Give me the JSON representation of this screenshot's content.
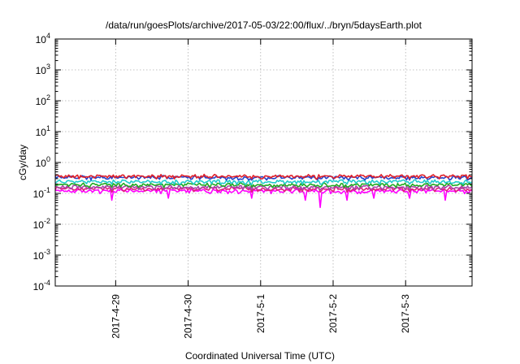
{
  "chart_data": {
    "type": "line",
    "title": "/data/run/goesPlots/archive/2017-05-03/22:00/flux/../bryn/5daysEarth.plot",
    "xlabel": "Coordinated Universal Time (UTC)",
    "ylabel": "cGy/day",
    "yscale": "log",
    "ylim": [
      0.0001,
      10000
    ],
    "xlim": [
      "2017-04-28 04:00",
      "2017-05-03 22:00"
    ],
    "grid": true,
    "y_ticks": [
      {
        "base": "10",
        "exp": "-4"
      },
      {
        "base": "10",
        "exp": "-3"
      },
      {
        "base": "10",
        "exp": "-2"
      },
      {
        "base": "10",
        "exp": "-1"
      },
      {
        "base": "10",
        "exp": "0"
      },
      {
        "base": "10",
        "exp": "1"
      },
      {
        "base": "10",
        "exp": "2"
      },
      {
        "base": "10",
        "exp": "3"
      },
      {
        "base": "10",
        "exp": "4"
      }
    ],
    "x_ticks": [
      "2017-4-29",
      "2017-4-30",
      "2017-5-1",
      "2017-5-2",
      "2017-5-3"
    ],
    "x_tick_times": [
      "2017-04-29 00:00",
      "2017-04-30 00:00",
      "2017-05-01 00:00",
      "2017-05-02 00:00",
      "2017-05-03 00:00"
    ],
    "series": [
      {
        "color": "#e0202a",
        "level": 0.36,
        "dips": [
          0.34,
          0.36,
          0.3,
          0.36,
          0.33
        ]
      },
      {
        "color": "#2244cc",
        "level": 0.33,
        "dips": [
          0.3,
          0.33,
          0.27,
          0.33,
          0.3
        ]
      },
      {
        "color": "#22cccc",
        "level": 0.24,
        "dips": [
          0.2,
          0.23,
          0.2,
          0.22,
          0.2
        ]
      },
      {
        "color": "#22aa22",
        "level": 0.19,
        "dips": [
          0.16,
          0.19,
          0.16,
          0.18,
          0.16
        ]
      },
      {
        "color": "#aa44aa",
        "level": 0.16,
        "dips": [
          0.13,
          0.16,
          0.13,
          0.15,
          0.13
        ]
      },
      {
        "color": "#e0207a",
        "level": 0.14,
        "dips": [
          0.11,
          0.14,
          0.11,
          0.13,
          0.11
        ]
      },
      {
        "color": "#ff00ff",
        "level": 0.12,
        "dips": [
          0.06,
          0.07,
          0.07,
          0.06,
          0.035
        ]
      }
    ]
  }
}
